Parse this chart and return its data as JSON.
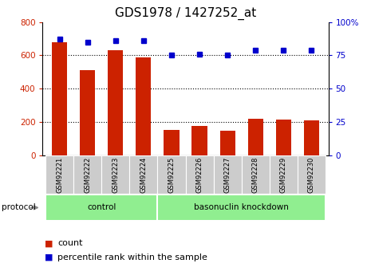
{
  "title": "GDS1978 / 1427252_at",
  "samples": [
    "GSM92221",
    "GSM92222",
    "GSM92223",
    "GSM92224",
    "GSM92225",
    "GSM92226",
    "GSM92227",
    "GSM92228",
    "GSM92229",
    "GSM92230"
  ],
  "counts": [
    680,
    510,
    630,
    590,
    155,
    175,
    148,
    220,
    215,
    208
  ],
  "percentile_ranks": [
    87,
    85,
    86,
    86,
    75,
    76,
    75,
    79,
    79,
    79
  ],
  "groups": [
    {
      "label": "control",
      "start": 0,
      "end": 4
    },
    {
      "label": "basonuclin knockdown",
      "start": 4,
      "end": 10
    }
  ],
  "bar_color": "#cc2200",
  "dot_color": "#0000cc",
  "left_ylim": [
    0,
    800
  ],
  "right_ylim": [
    0,
    100
  ],
  "left_yticks": [
    0,
    200,
    400,
    600,
    800
  ],
  "right_yticks": [
    0,
    25,
    50,
    75,
    100
  ],
  "right_yticklabels": [
    "0",
    "25",
    "50",
    "75",
    "100%"
  ],
  "grid_values": [
    200,
    400,
    600
  ],
  "title_fontsize": 11,
  "axis_label_color_left": "#cc2200",
  "axis_label_color_right": "#0000cc",
  "protocol_label": "protocol",
  "group_bg_color": "#90ee90",
  "tick_bg_color": "#cccccc",
  "legend_count_label": "count",
  "legend_pct_label": "percentile rank within the sample"
}
